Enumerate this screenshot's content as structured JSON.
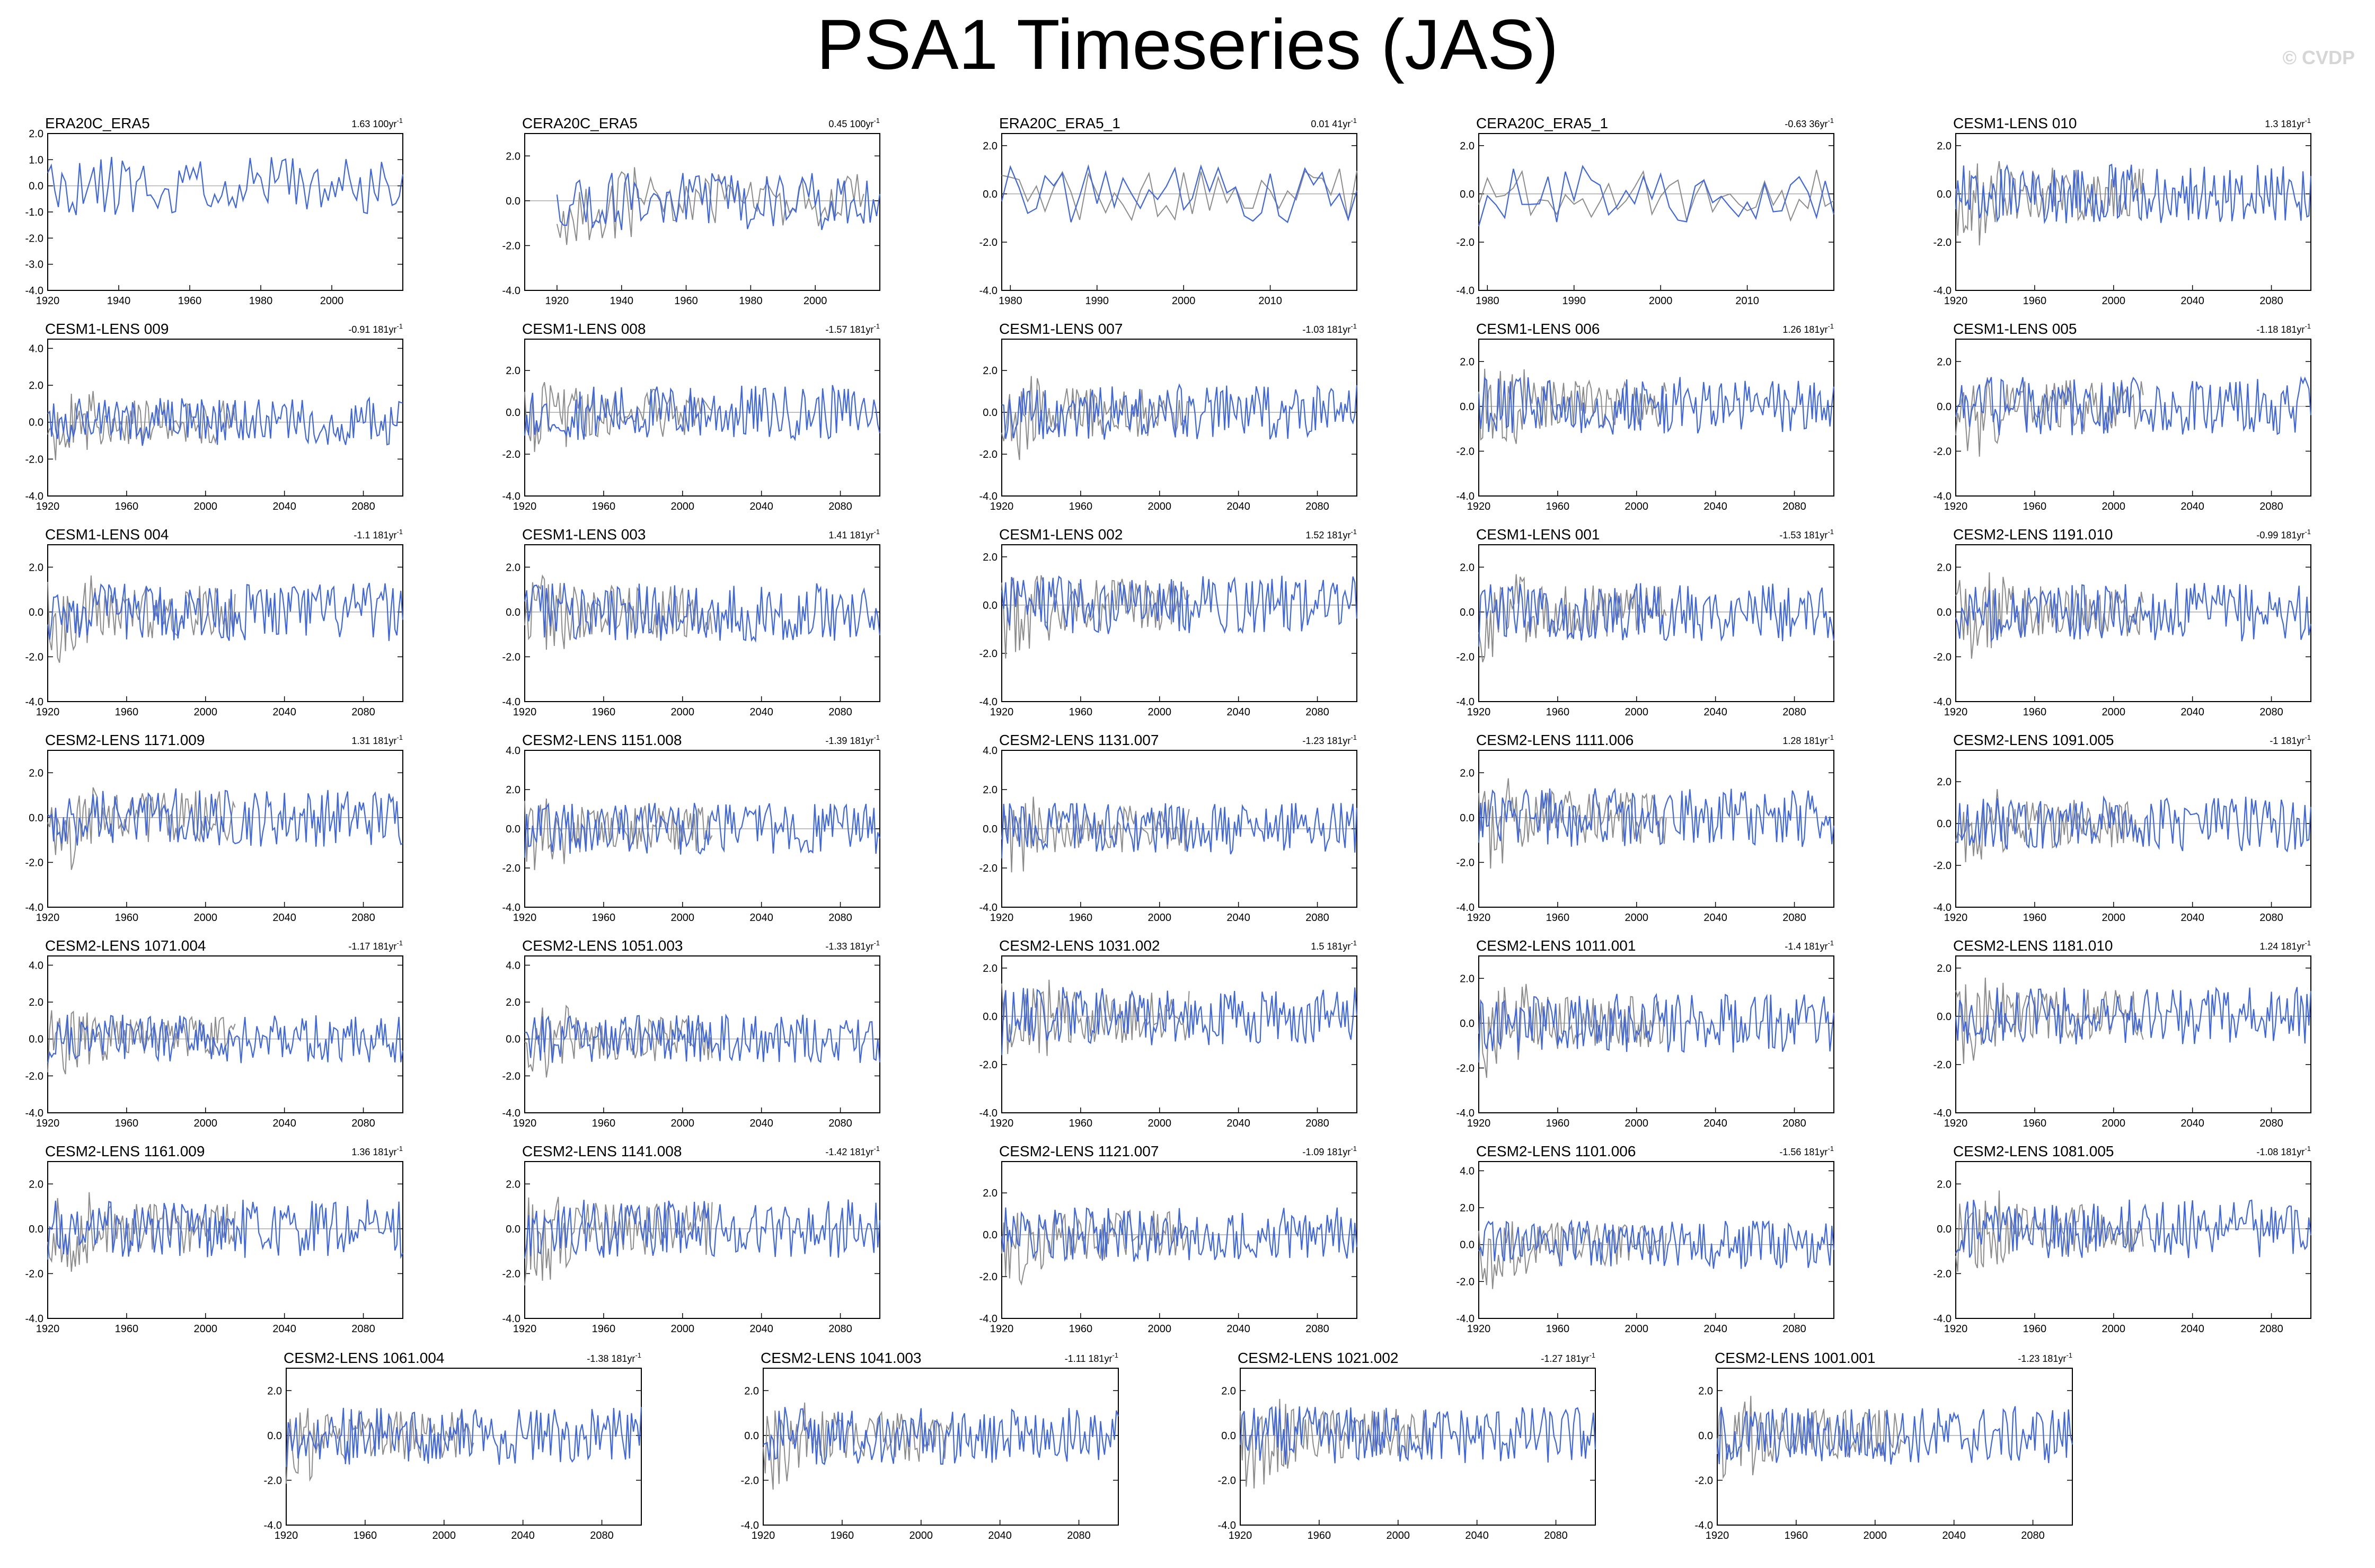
{
  "title": "PSA1 Timeseries (JAS)",
  "watermark": "© CVDP",
  "colors": {
    "model": "#3d66e0",
    "observation": "#8c8c8c",
    "zero_line": "#9a9a9a"
  },
  "chart_data": [
    {
      "type": "line",
      "title": "ERA20C_ERA5",
      "trend": "1.63 100yr",
      "x_range": [
        1920,
        2020
      ],
      "x_ticks": [
        "1920",
        "1940",
        "1960",
        "1980",
        "2000"
      ],
      "y_ticks": [
        "2.0",
        "1.0",
        "0.0",
        "-1.0",
        "-2.0",
        "-3.0",
        "-4.0"
      ],
      "ylim": [
        -4.0,
        2.0
      ],
      "grey_series": false,
      "blue_end": 2020,
      "seed": 11
    },
    {
      "type": "line",
      "title": "CERA20C_ERA5",
      "trend": "0.45 100yr",
      "x_range": [
        1910,
        2020
      ],
      "x_ticks": [
        "1920",
        "1940",
        "1960",
        "1980",
        "2000"
      ],
      "y_ticks": [
        "2.0",
        "0.0",
        "-2.0",
        "-4.0"
      ],
      "ylim": [
        -4.0,
        3.0
      ],
      "grey_series": true,
      "blue_end": 2020,
      "seed": 12
    },
    {
      "type": "line",
      "title": "ERA20C_ERA5_1",
      "trend": "0.01 41yr",
      "x_range": [
        1979,
        2020
      ],
      "x_ticks": [
        "1980",
        "1990",
        "2000",
        "2010"
      ],
      "y_ticks": [
        "2.0",
        "0.0",
        "-2.0",
        "-4.0"
      ],
      "ylim": [
        -4.0,
        2.5
      ],
      "grey_series": true,
      "blue_end": 2020,
      "seed": 13
    },
    {
      "type": "line",
      "title": "CERA20C_ERA5_1",
      "trend": "-0.63 36yr",
      "x_range": [
        1979,
        2020
      ],
      "x_ticks": [
        "1980",
        "1990",
        "2000",
        "2010"
      ],
      "y_ticks": [
        "2.0",
        "0.0",
        "-2.0",
        "-4.0"
      ],
      "ylim": [
        -4.0,
        2.5
      ],
      "grey_series": true,
      "blue_end": 2020,
      "seed": 14
    },
    {
      "type": "line",
      "title": "CESM1-LENS 010",
      "trend": "1.3 181yr",
      "x_range": [
        1920,
        2100
      ],
      "x_ticks": [
        "1920",
        "1960",
        "2000",
        "2040",
        "2080"
      ],
      "y_ticks": [
        "2.0",
        "0.0",
        "-2.0",
        "-4.0"
      ],
      "ylim": [
        -4.0,
        2.5
      ],
      "grey_series": true,
      "blue_end": 2100,
      "seed": 15
    },
    {
      "type": "line",
      "title": "CESM1-LENS 009",
      "trend": "-0.91 181yr",
      "x_range": [
        1920,
        2100
      ],
      "x_ticks": [
        "1920",
        "1960",
        "2000",
        "2040",
        "2080"
      ],
      "y_ticks": [
        "4.0",
        "2.0",
        "0.0",
        "-2.0",
        "-4.0"
      ],
      "ylim": [
        -4.0,
        4.5
      ],
      "grey_series": true,
      "blue_end": 2100,
      "seed": 21
    },
    {
      "type": "line",
      "title": "CESM1-LENS 008",
      "trend": "-1.57 181yr",
      "x_range": [
        1920,
        2100
      ],
      "x_ticks": [
        "1920",
        "1960",
        "2000",
        "2040",
        "2080"
      ],
      "y_ticks": [
        "2.0",
        "0.0",
        "-2.0",
        "-4.0"
      ],
      "ylim": [
        -4.0,
        3.5
      ],
      "grey_series": true,
      "blue_end": 2100,
      "seed": 22
    },
    {
      "type": "line",
      "title": "CESM1-LENS 007",
      "trend": "-1.03 181yr",
      "x_range": [
        1920,
        2100
      ],
      "x_ticks": [
        "1920",
        "1960",
        "2000",
        "2040",
        "2080"
      ],
      "y_ticks": [
        "2.0",
        "0.0",
        "-2.0",
        "-4.0"
      ],
      "ylim": [
        -4.0,
        3.5
      ],
      "grey_series": true,
      "blue_end": 2100,
      "seed": 23
    },
    {
      "type": "line",
      "title": "CESM1-LENS 006",
      "trend": "1.26 181yr",
      "x_range": [
        1920,
        2100
      ],
      "x_ticks": [
        "1920",
        "1960",
        "2000",
        "2040",
        "2080"
      ],
      "y_ticks": [
        "2.0",
        "0.0",
        "-2.0",
        "-4.0"
      ],
      "ylim": [
        -4.0,
        3.0
      ],
      "grey_series": true,
      "blue_end": 2100,
      "seed": 24
    },
    {
      "type": "line",
      "title": "CESM1-LENS 005",
      "trend": "-1.18 181yr",
      "x_range": [
        1920,
        2100
      ],
      "x_ticks": [
        "1920",
        "1960",
        "2000",
        "2040",
        "2080"
      ],
      "y_ticks": [
        "2.0",
        "0.0",
        "-2.0",
        "-4.0"
      ],
      "ylim": [
        -4.0,
        3.0
      ],
      "grey_series": true,
      "blue_end": 2100,
      "seed": 25
    },
    {
      "type": "line",
      "title": "CESM1-LENS 004",
      "trend": "-1.1 181yr",
      "x_range": [
        1920,
        2100
      ],
      "x_ticks": [
        "1920",
        "1960",
        "2000",
        "2040",
        "2080"
      ],
      "y_ticks": [
        "2.0",
        "0.0",
        "-2.0",
        "-4.0"
      ],
      "ylim": [
        -4.0,
        3.0
      ],
      "grey_series": true,
      "blue_end": 2100,
      "seed": 31
    },
    {
      "type": "line",
      "title": "CESM1-LENS 003",
      "trend": "1.41 181yr",
      "x_range": [
        1920,
        2100
      ],
      "x_ticks": [
        "1920",
        "1960",
        "2000",
        "2040",
        "2080"
      ],
      "y_ticks": [
        "2.0",
        "0.0",
        "-2.0",
        "-4.0"
      ],
      "ylim": [
        -4.0,
        3.0
      ],
      "grey_series": true,
      "blue_end": 2100,
      "seed": 32
    },
    {
      "type": "line",
      "title": "CESM1-LENS 002",
      "trend": "1.52 181yr",
      "x_range": [
        1920,
        2100
      ],
      "x_ticks": [
        "1920",
        "1960",
        "2000",
        "2040",
        "2080"
      ],
      "y_ticks": [
        "2.0",
        "0.0",
        "-2.0",
        "-4.0"
      ],
      "ylim": [
        -4.0,
        2.5
      ],
      "grey_series": true,
      "blue_end": 2100,
      "seed": 33
    },
    {
      "type": "line",
      "title": "CESM1-LENS 001",
      "trend": "-1.53 181yr",
      "x_range": [
        1920,
        2100
      ],
      "x_ticks": [
        "1920",
        "1960",
        "2000",
        "2040",
        "2080"
      ],
      "y_ticks": [
        "2.0",
        "0.0",
        "-2.0",
        "-4.0"
      ],
      "ylim": [
        -4.0,
        3.0
      ],
      "grey_series": true,
      "blue_end": 2100,
      "seed": 34
    },
    {
      "type": "line",
      "title": "CESM2-LENS 1191.010",
      "trend": "-0.99 181yr",
      "x_range": [
        1920,
        2100
      ],
      "x_ticks": [
        "1920",
        "1960",
        "2000",
        "2040",
        "2080"
      ],
      "y_ticks": [
        "2.0",
        "0.0",
        "-2.0",
        "-4.0"
      ],
      "ylim": [
        -4.0,
        3.0
      ],
      "grey_series": true,
      "blue_end": 2100,
      "seed": 35
    },
    {
      "type": "line",
      "title": "CESM2-LENS 1171.009",
      "trend": "1.31 181yr",
      "x_range": [
        1920,
        2100
      ],
      "x_ticks": [
        "1920",
        "1960",
        "2000",
        "2040",
        "2080"
      ],
      "y_ticks": [
        "2.0",
        "0.0",
        "-2.0",
        "-4.0"
      ],
      "ylim": [
        -4.0,
        3.0
      ],
      "grey_series": true,
      "blue_end": 2100,
      "seed": 41
    },
    {
      "type": "line",
      "title": "CESM2-LENS 1151.008",
      "trend": "-1.39 181yr",
      "x_range": [
        1920,
        2100
      ],
      "x_ticks": [
        "1920",
        "1960",
        "2000",
        "2040",
        "2080"
      ],
      "y_ticks": [
        "4.0",
        "2.0",
        "0.0",
        "-2.0",
        "-4.0"
      ],
      "ylim": [
        -4.0,
        4.0
      ],
      "grey_series": true,
      "blue_end": 2100,
      "seed": 42
    },
    {
      "type": "line",
      "title": "CESM2-LENS 1131.007",
      "trend": "-1.23 181yr",
      "x_range": [
        1920,
        2100
      ],
      "x_ticks": [
        "1920",
        "1960",
        "2000",
        "2040",
        "2080"
      ],
      "y_ticks": [
        "4.0",
        "2.0",
        "0.0",
        "-2.0",
        "-4.0"
      ],
      "ylim": [
        -4.0,
        4.0
      ],
      "grey_series": true,
      "blue_end": 2100,
      "seed": 43
    },
    {
      "type": "line",
      "title": "CESM2-LENS 1111.006",
      "trend": "1.28 181yr",
      "x_range": [
        1920,
        2100
      ],
      "x_ticks": [
        "1920",
        "1960",
        "2000",
        "2040",
        "2080"
      ],
      "y_ticks": [
        "2.0",
        "0.0",
        "-2.0",
        "-4.0"
      ],
      "ylim": [
        -4.0,
        3.0
      ],
      "grey_series": true,
      "blue_end": 2100,
      "seed": 44
    },
    {
      "type": "line",
      "title": "CESM2-LENS 1091.005",
      "trend": "-1 181yr",
      "x_range": [
        1920,
        2100
      ],
      "x_ticks": [
        "1920",
        "1960",
        "2000",
        "2040",
        "2080"
      ],
      "y_ticks": [
        "2.0",
        "0.0",
        "-2.0",
        "-4.0"
      ],
      "ylim": [
        -4.0,
        3.5
      ],
      "grey_series": true,
      "blue_end": 2100,
      "seed": 45
    },
    {
      "type": "line",
      "title": "CESM2-LENS 1071.004",
      "trend": "-1.17 181yr",
      "x_range": [
        1920,
        2100
      ],
      "x_ticks": [
        "1920",
        "1960",
        "2000",
        "2040",
        "2080"
      ],
      "y_ticks": [
        "4.0",
        "2.0",
        "0.0",
        "-2.0",
        "-4.0"
      ],
      "ylim": [
        -4.0,
        4.5
      ],
      "grey_series": true,
      "blue_end": 2100,
      "seed": 51
    },
    {
      "type": "line",
      "title": "CESM2-LENS 1051.003",
      "trend": "-1.33 181yr",
      "x_range": [
        1920,
        2100
      ],
      "x_ticks": [
        "1920",
        "1960",
        "2000",
        "2040",
        "2080"
      ],
      "y_ticks": [
        "4.0",
        "2.0",
        "0.0",
        "-2.0",
        "-4.0"
      ],
      "ylim": [
        -4.0,
        4.5
      ],
      "grey_series": true,
      "blue_end": 2100,
      "seed": 52
    },
    {
      "type": "line",
      "title": "CESM2-LENS 1031.002",
      "trend": "1.5 181yr",
      "x_range": [
        1920,
        2100
      ],
      "x_ticks": [
        "1920",
        "1960",
        "2000",
        "2040",
        "2080"
      ],
      "y_ticks": [
        "2.0",
        "0.0",
        "-2.0",
        "-4.0"
      ],
      "ylim": [
        -4.0,
        2.5
      ],
      "grey_series": true,
      "blue_end": 2100,
      "seed": 53
    },
    {
      "type": "line",
      "title": "CESM2-LENS 1011.001",
      "trend": "-1.4 181yr",
      "x_range": [
        1920,
        2100
      ],
      "x_ticks": [
        "1920",
        "1960",
        "2000",
        "2040",
        "2080"
      ],
      "y_ticks": [
        "2.0",
        "0.0",
        "-2.0",
        "-4.0"
      ],
      "ylim": [
        -4.0,
        3.0
      ],
      "grey_series": true,
      "blue_end": 2100,
      "seed": 54
    },
    {
      "type": "line",
      "title": "CESM2-LENS 1181.010",
      "trend": "1.24 181yr",
      "x_range": [
        1920,
        2100
      ],
      "x_ticks": [
        "1920",
        "1960",
        "2000",
        "2040",
        "2080"
      ],
      "y_ticks": [
        "2.0",
        "0.0",
        "-2.0",
        "-4.0"
      ],
      "ylim": [
        -4.0,
        2.5
      ],
      "grey_series": true,
      "blue_end": 2100,
      "seed": 55
    },
    {
      "type": "line",
      "title": "CESM2-LENS 1161.009",
      "trend": "1.36 181yr",
      "x_range": [
        1920,
        2100
      ],
      "x_ticks": [
        "1920",
        "1960",
        "2000",
        "2040",
        "2080"
      ],
      "y_ticks": [
        "2.0",
        "0.0",
        "-2.0",
        "-4.0"
      ],
      "ylim": [
        -4.0,
        3.0
      ],
      "grey_series": true,
      "blue_end": 2100,
      "seed": 61
    },
    {
      "type": "line",
      "title": "CESM2-LENS 1141.008",
      "trend": "-1.42 181yr",
      "x_range": [
        1920,
        2100
      ],
      "x_ticks": [
        "1920",
        "1960",
        "2000",
        "2040",
        "2080"
      ],
      "y_ticks": [
        "2.0",
        "0.0",
        "-2.0",
        "-4.0"
      ],
      "ylim": [
        -4.0,
        3.0
      ],
      "grey_series": true,
      "blue_end": 2100,
      "seed": 62
    },
    {
      "type": "line",
      "title": "CESM2-LENS 1121.007",
      "trend": "-1.09 181yr",
      "x_range": [
        1920,
        2100
      ],
      "x_ticks": [
        "1920",
        "1960",
        "2000",
        "2040",
        "2080"
      ],
      "y_ticks": [
        "2.0",
        "0.0",
        "-2.0",
        "-4.0"
      ],
      "ylim": [
        -4.0,
        3.5
      ],
      "grey_series": true,
      "blue_end": 2100,
      "seed": 63
    },
    {
      "type": "line",
      "title": "CESM2-LENS 1101.006",
      "trend": "-1.56 181yr",
      "x_range": [
        1920,
        2100
      ],
      "x_ticks": [
        "1920",
        "1960",
        "2000",
        "2040",
        "2080"
      ],
      "y_ticks": [
        "4.0",
        "2.0",
        "0.0",
        "-2.0",
        "-4.0"
      ],
      "ylim": [
        -4.0,
        4.5
      ],
      "grey_series": true,
      "blue_end": 2100,
      "seed": 64
    },
    {
      "type": "line",
      "title": "CESM2-LENS 1081.005",
      "trend": "-1.08 181yr",
      "x_range": [
        1920,
        2100
      ],
      "x_ticks": [
        "1920",
        "1960",
        "2000",
        "2040",
        "2080"
      ],
      "y_ticks": [
        "2.0",
        "0.0",
        "-2.0",
        "-4.0"
      ],
      "ylim": [
        -4.0,
        3.0
      ],
      "grey_series": true,
      "blue_end": 2100,
      "seed": 65
    },
    {
      "type": "line",
      "title": "CESM2-LENS 1061.004",
      "trend": "-1.38 181yr",
      "x_range": [
        1920,
        2100
      ],
      "x_ticks": [
        "1920",
        "1960",
        "2000",
        "2040",
        "2080"
      ],
      "y_ticks": [
        "2.0",
        "0.0",
        "-2.0",
        "-4.0"
      ],
      "ylim": [
        -4.0,
        3.0
      ],
      "grey_series": true,
      "blue_end": 2100,
      "seed": 71
    },
    {
      "type": "line",
      "title": "CESM2-LENS 1041.003",
      "trend": "-1.11 181yr",
      "x_range": [
        1920,
        2100
      ],
      "x_ticks": [
        "1920",
        "1960",
        "2000",
        "2040",
        "2080"
      ],
      "y_ticks": [
        "2.0",
        "0.0",
        "-2.0",
        "-4.0"
      ],
      "ylim": [
        -4.0,
        3.0
      ],
      "grey_series": true,
      "blue_end": 2100,
      "seed": 72
    },
    {
      "type": "line",
      "title": "CESM2-LENS 1021.002",
      "trend": "-1.27 181yr",
      "x_range": [
        1920,
        2100
      ],
      "x_ticks": [
        "1920",
        "1960",
        "2000",
        "2040",
        "2080"
      ],
      "y_ticks": [
        "2.0",
        "0.0",
        "-2.0",
        "-4.0"
      ],
      "ylim": [
        -4.0,
        3.0
      ],
      "grey_series": true,
      "blue_end": 2100,
      "seed": 73
    },
    {
      "type": "line",
      "title": "CESM2-LENS 1001.001",
      "trend": "-1.23 181yr",
      "x_range": [
        1920,
        2100
      ],
      "x_ticks": [
        "1920",
        "1960",
        "2000",
        "2040",
        "2080"
      ],
      "y_ticks": [
        "2.0",
        "0.0",
        "-2.0",
        "-4.0"
      ],
      "ylim": [
        -4.0,
        3.0
      ],
      "grey_series": true,
      "blue_end": 2100,
      "seed": 74
    }
  ]
}
